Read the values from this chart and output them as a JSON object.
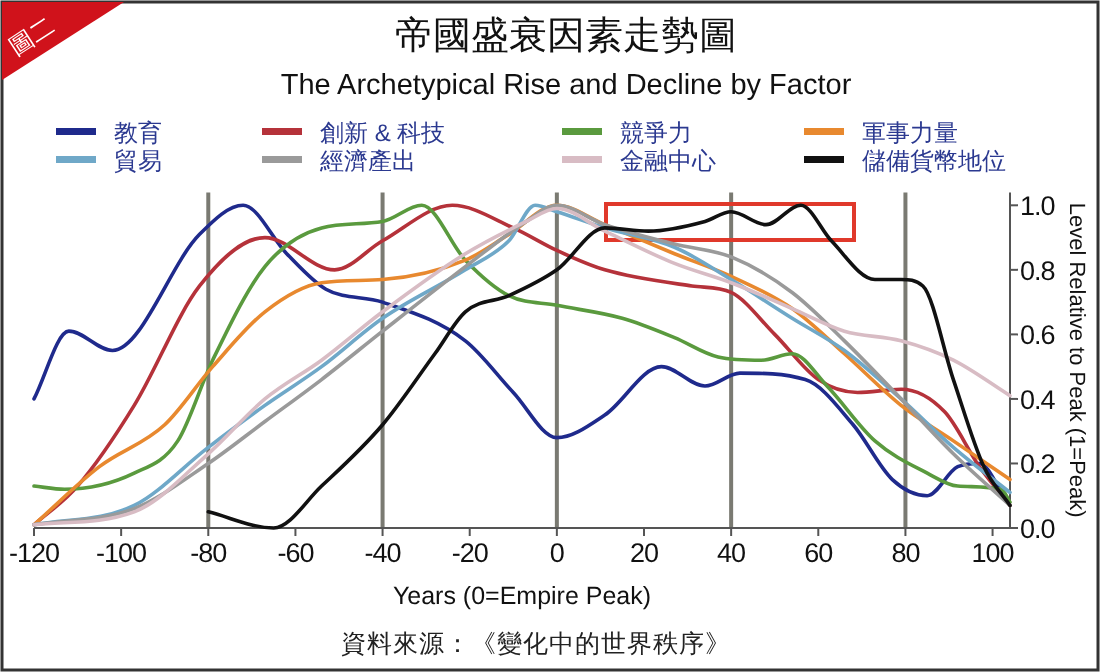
{
  "chart_data": {
    "type": "line",
    "title": "帝國盛衰因素走勢圖",
    "subtitle": "The Archetypical Rise and Decline by Factor",
    "xlabel": "Years (0=Empire Peak)",
    "ylabel": "Level Relative to Peak (1=Peak)",
    "annotations": [
      "圖二",
      "資料來源：《變化中的世界秩序》"
    ],
    "xlim": [
      -120,
      104
    ],
    "ylim": [
      0,
      1.04
    ],
    "xticks": [
      -120,
      -100,
      -80,
      -60,
      -40,
      -20,
      0,
      20,
      40,
      60,
      80,
      100
    ],
    "yticks": [
      {
        "value": 0,
        "label": "0.0"
      },
      {
        "value": 0.2,
        "label": "0.2"
      },
      {
        "value": 0.4,
        "label": "0.4"
      },
      {
        "value": 0.6,
        "label": "0.6"
      },
      {
        "value": 0.8,
        "label": "0.8"
      },
      {
        "value": 1,
        "label": "1.0"
      }
    ],
    "legend": "top",
    "grid": false,
    "marker": "none",
    "line_style": "solid",
    "ref_lines": [
      {
        "axis": "x",
        "value": -80,
        "color": "#7a7a72"
      },
      {
        "axis": "x",
        "value": -40,
        "color": "#7a7a72"
      },
      {
        "axis": "x",
        "value": 0,
        "color": "#7a7a72"
      },
      {
        "axis": "x",
        "value": 40,
        "color": "#7a7a72"
      },
      {
        "axis": "x",
        "value": 80,
        "color": "#7a7a72"
      }
    ],
    "series": [
      {
        "name": "教育",
        "color": "#1f2a8c",
        "x": [
          -120,
          -112,
          -102,
          -82,
          -72,
          -62,
          -53,
          -40,
          -21,
          -10,
          0,
          11,
          24,
          34,
          42,
          57,
          68,
          77,
          85,
          92,
          97,
          103
        ],
        "values": [
          0.4,
          0.61,
          0.55,
          0.91,
          1.0,
          0.85,
          0.74,
          0.7,
          0.58,
          0.42,
          0.28,
          0.35,
          0.5,
          0.44,
          0.48,
          0.46,
          0.32,
          0.15,
          0.1,
          0.19,
          0.2,
          0.09
        ]
      },
      {
        "name": "創新 & 科技",
        "color": "#b5323a",
        "x": [
          -120,
          -110,
          -97,
          -82,
          -67,
          -51,
          -40,
          -24,
          -10,
          0,
          11,
          31,
          40,
          50,
          60,
          69,
          79,
          89,
          97,
          104
        ],
        "values": [
          0.01,
          0.13,
          0.38,
          0.75,
          0.9,
          0.8,
          0.89,
          1.0,
          0.93,
          0.86,
          0.8,
          0.75,
          0.73,
          0.6,
          0.46,
          0.42,
          0.43,
          0.36,
          0.19,
          0.07
        ]
      },
      {
        "name": "競爭力",
        "color": "#5a9a3e",
        "x": [
          -120,
          -113,
          -97,
          -87,
          -79,
          -67,
          -54,
          -40,
          -31,
          -21,
          -11,
          0,
          15,
          27,
          37,
          47,
          54,
          62,
          73,
          85,
          92,
          102,
          104
        ],
        "values": [
          0.13,
          0.12,
          0.17,
          0.27,
          0.52,
          0.81,
          0.93,
          0.95,
          1.0,
          0.83,
          0.72,
          0.69,
          0.65,
          0.59,
          0.53,
          0.52,
          0.54,
          0.44,
          0.27,
          0.17,
          0.13,
          0.12,
          0.08
        ]
      },
      {
        "name": "軍事力量",
        "color": "#e8892f",
        "x": [
          -120,
          -105,
          -90,
          -79,
          -67,
          -54,
          -40,
          -21,
          -11,
          0,
          11,
          27,
          40,
          54,
          66,
          79,
          91,
          104
        ],
        "values": [
          0.01,
          0.19,
          0.32,
          0.5,
          0.67,
          0.76,
          0.77,
          0.83,
          0.91,
          1.0,
          0.94,
          0.85,
          0.78,
          0.68,
          0.54,
          0.38,
          0.27,
          0.15
        ]
      },
      {
        "name": "貿易",
        "color": "#6fa8c8",
        "x": [
          -120,
          -97,
          -80,
          -67,
          -54,
          -40,
          -21,
          -11,
          -5,
          0,
          11,
          27,
          40,
          54,
          66,
          79,
          91,
          104
        ],
        "values": [
          0.01,
          0.07,
          0.25,
          0.38,
          0.5,
          0.65,
          0.8,
          0.89,
          1.0,
          0.98,
          0.93,
          0.87,
          0.77,
          0.65,
          0.55,
          0.4,
          0.25,
          0.11
        ]
      },
      {
        "name": "經濟產出",
        "color": "#9a9a9a",
        "x": [
          -120,
          -97,
          -80,
          -67,
          -54,
          -40,
          -21,
          -7,
          0,
          11,
          27,
          40,
          54,
          66,
          79,
          91,
          104
        ],
        "values": [
          0.01,
          0.06,
          0.2,
          0.33,
          0.46,
          0.61,
          0.81,
          0.95,
          1.0,
          0.94,
          0.88,
          0.84,
          0.73,
          0.58,
          0.4,
          0.23,
          0.07
        ]
      },
      {
        "name": "金融中心",
        "color": "#d8bcc4",
        "x": [
          -120,
          -97,
          -80,
          -67,
          -54,
          -40,
          -21,
          -7,
          0,
          11,
          27,
          40,
          54,
          66,
          79,
          91,
          104
        ],
        "values": [
          0.01,
          0.05,
          0.23,
          0.4,
          0.52,
          0.67,
          0.85,
          0.95,
          0.99,
          0.92,
          0.82,
          0.76,
          0.68,
          0.61,
          0.58,
          0.52,
          0.41
        ]
      },
      {
        "name": "儲備貨幣地位",
        "color": "#111111",
        "x": [
          -80,
          -65,
          -54,
          -40,
          -28,
          -21,
          -11,
          0,
          11,
          21,
          34,
          40,
          48,
          56,
          63,
          73,
          79,
          84,
          91,
          98,
          104
        ],
        "values": [
          0.05,
          0.0,
          0.13,
          0.32,
          0.54,
          0.67,
          0.72,
          0.8,
          0.93,
          0.92,
          0.95,
          0.98,
          0.94,
          1.0,
          0.89,
          0.77,
          0.77,
          0.75,
          0.46,
          0.19,
          0.07
        ]
      }
    ]
  }
}
